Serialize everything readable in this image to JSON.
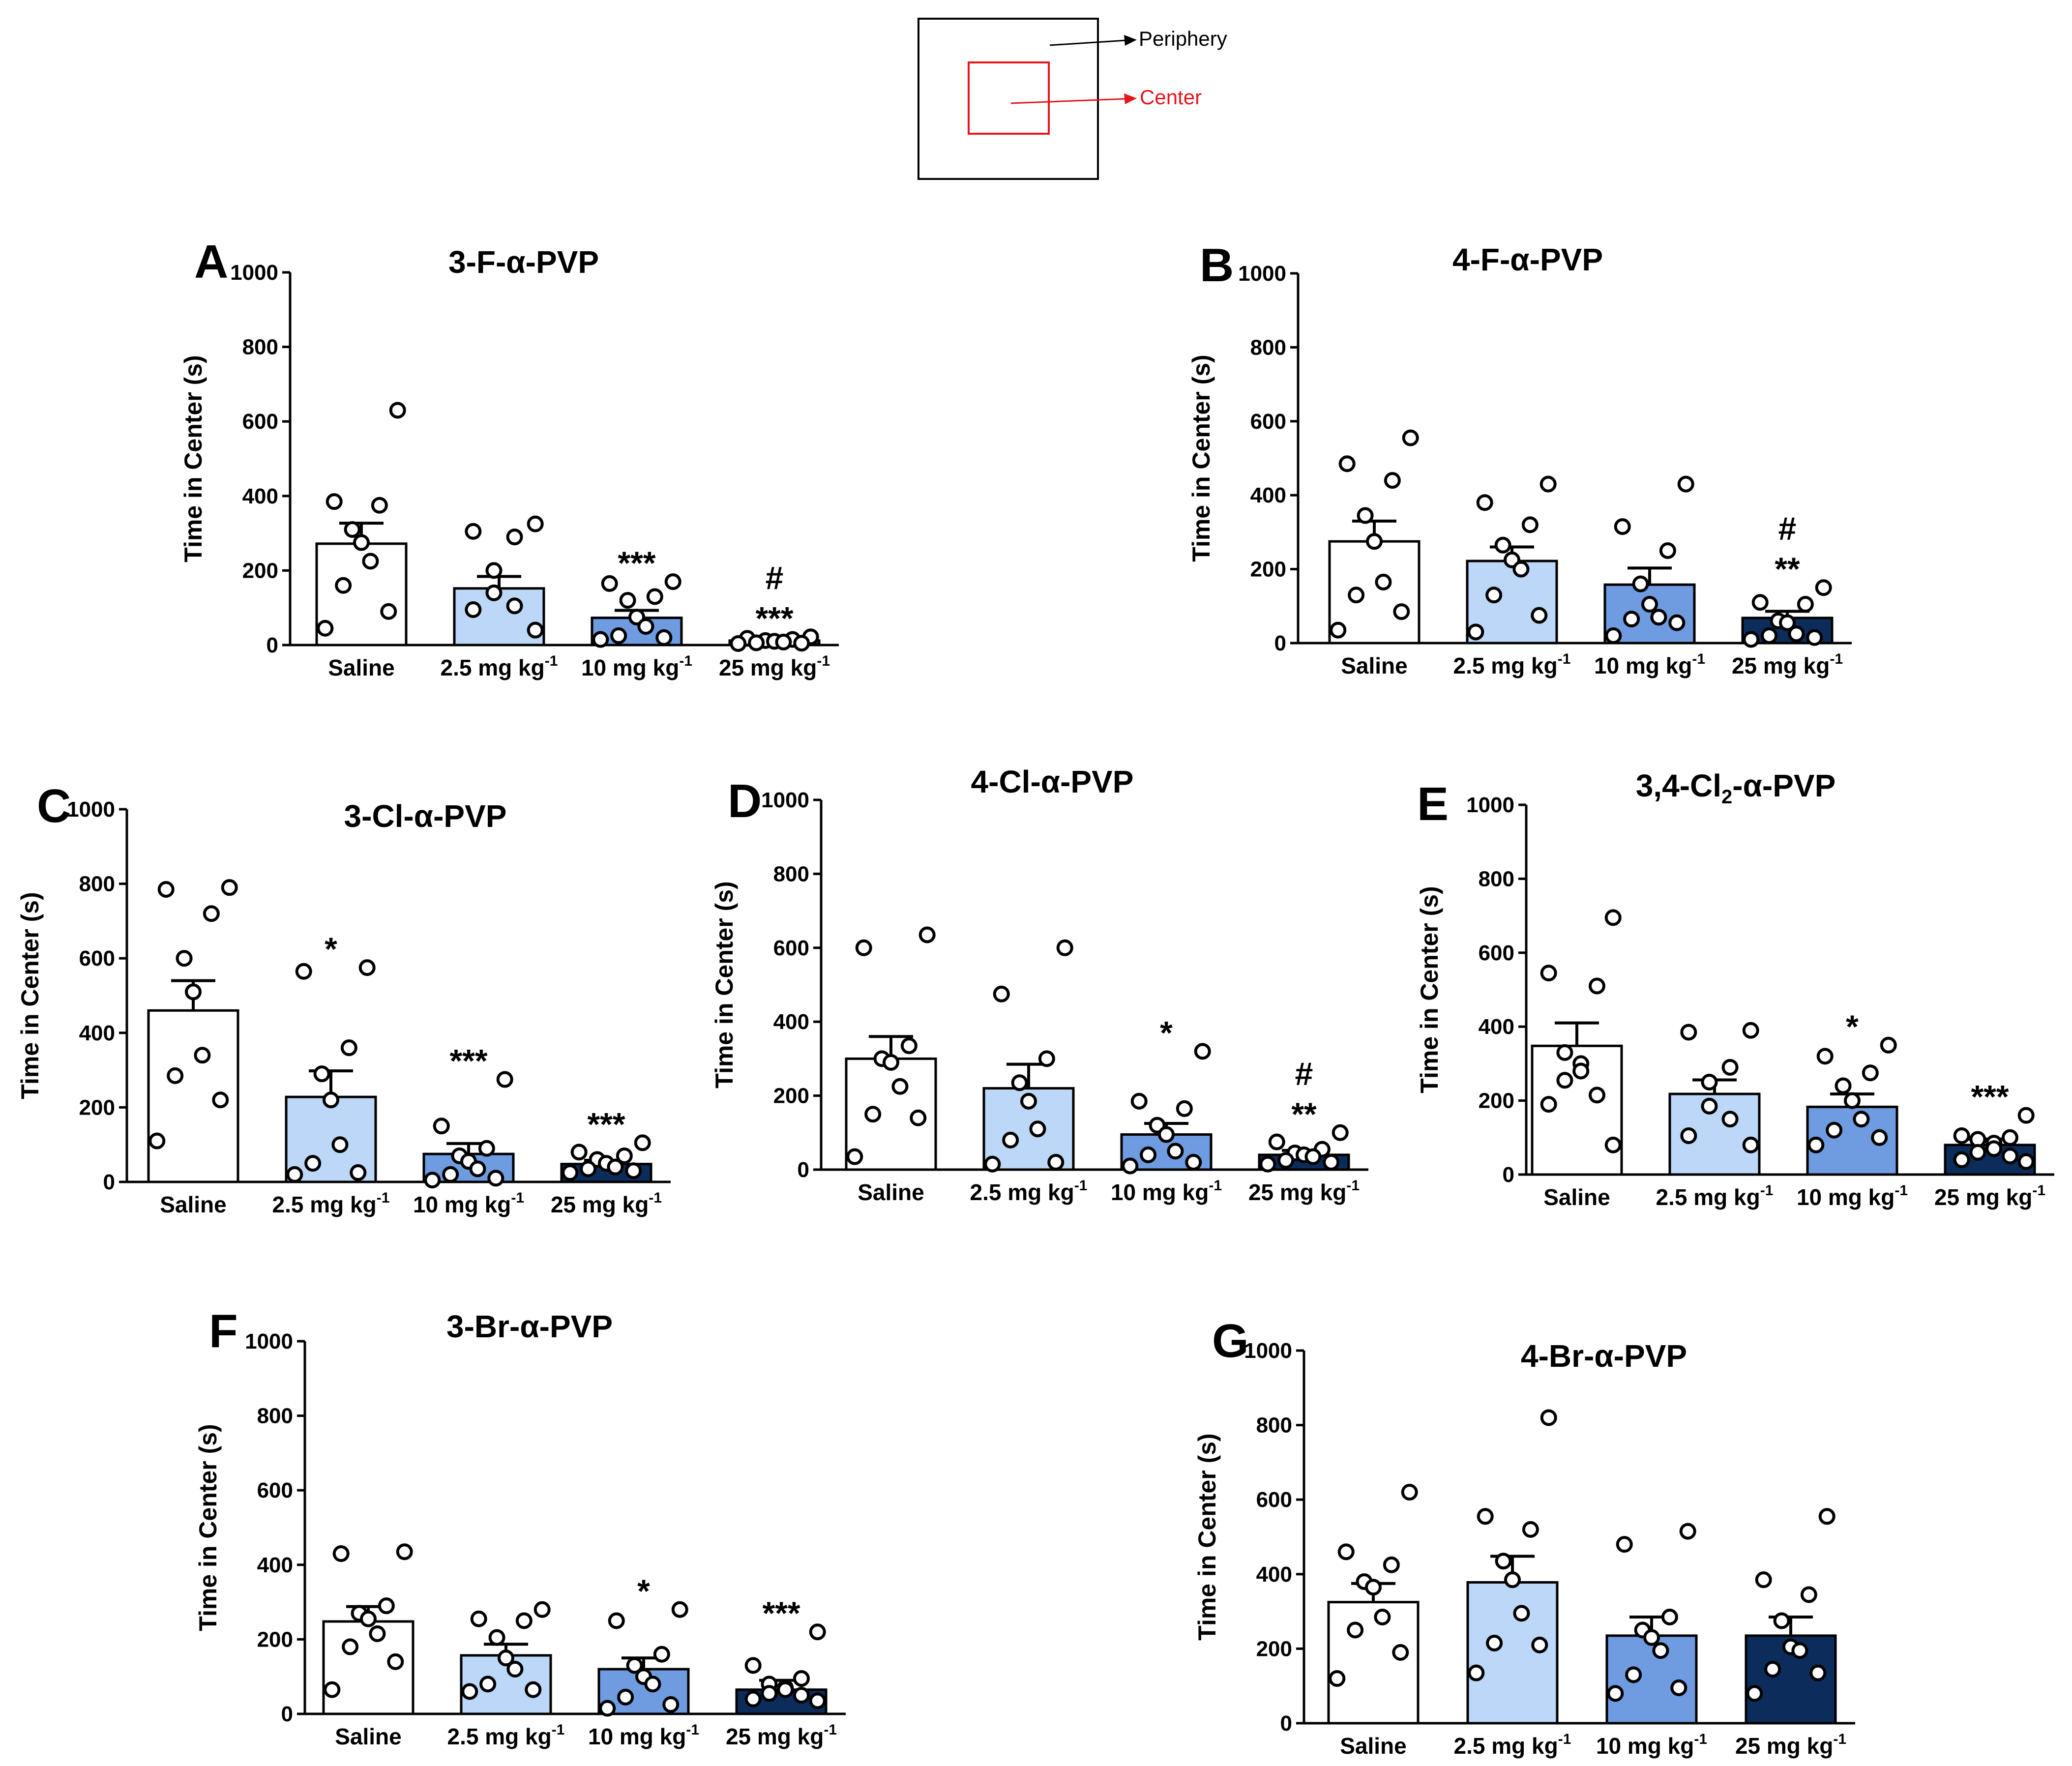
{
  "arena": {
    "periphery_label": "Periphery",
    "center_label": "Center",
    "periphery_color": "#000000",
    "center_color": "#e8141b"
  },
  "bar_colors": [
    "#ffffff",
    "#bcd7f7",
    "#6f9be0",
    "#0c2d5c"
  ],
  "chart_data": [
    {
      "type": "bar",
      "panel": "A",
      "title": "3-F-α-PVP",
      "ylabel": "Time in Center (s)",
      "ylim": [
        0,
        1000
      ],
      "yticks": [
        0,
        200,
        400,
        600,
        800,
        1000
      ],
      "categories": [
        "Saline",
        "2.5 mg kg",
        "10 mg kg",
        "25 mg kg"
      ],
      "unit_superscript": "-1",
      "values": [
        272,
        152,
        73,
        12
      ],
      "sem": [
        55,
        32,
        20,
        3
      ],
      "points": [
        [
          630,
          385,
          375,
          310,
          275,
          225,
          160,
          90,
          45
        ],
        [
          325,
          305,
          290,
          200,
          140,
          105,
          95,
          40
        ],
        [
          170,
          165,
          130,
          120,
          75,
          50,
          25,
          20,
          15
        ],
        [
          22,
          18,
          15,
          12,
          10,
          8,
          6,
          5,
          4
        ]
      ],
      "significance": [
        [
          "",
          ""
        ],
        [
          "",
          ""
        ],
        [
          "***",
          ""
        ],
        [
          "***",
          "#"
        ]
      ]
    },
    {
      "type": "bar",
      "panel": "B",
      "title": "4-F-α-PVP",
      "ylabel": "Time in Center (s)",
      "ylim": [
        0,
        1000
      ],
      "yticks": [
        0,
        200,
        400,
        600,
        800,
        1000
      ],
      "categories": [
        "Saline",
        "2.5 mg kg",
        "10 mg kg",
        "25 mg kg"
      ],
      "unit_superscript": "-1",
      "values": [
        275,
        222,
        158,
        68
      ],
      "sem": [
        55,
        38,
        45,
        18
      ],
      "points": [
        [
          555,
          485,
          440,
          345,
          275,
          165,
          130,
          85,
          35
        ],
        [
          430,
          380,
          320,
          265,
          225,
          200,
          130,
          75,
          30
        ],
        [
          430,
          315,
          250,
          160,
          105,
          70,
          65,
          55,
          20
        ],
        [
          150,
          110,
          105,
          60,
          55,
          25,
          20,
          15,
          10
        ]
      ],
      "significance": [
        [
          "",
          ""
        ],
        [
          "",
          ""
        ],
        [
          "",
          ""
        ],
        [
          "**",
          "#"
        ]
      ]
    },
    {
      "type": "bar",
      "panel": "C",
      "title": "3-Cl-α-PVP",
      "ylabel": "Time in Center (s)",
      "ylim": [
        0,
        1000
      ],
      "yticks": [
        0,
        200,
        400,
        600,
        800,
        1000
      ],
      "categories": [
        "Saline",
        "2.5 mg kg",
        "10 mg kg",
        "25 mg kg"
      ],
      "unit_superscript": "-1",
      "values": [
        460,
        228,
        75,
        48
      ],
      "sem": [
        80,
        70,
        28,
        10
      ],
      "points": [
        [
          790,
          785,
          720,
          600,
          510,
          340,
          285,
          220,
          110
        ],
        [
          575,
          565,
          360,
          290,
          220,
          100,
          50,
          25,
          20
        ],
        [
          275,
          150,
          90,
          70,
          55,
          35,
          20,
          10,
          5
        ],
        [
          105,
          80,
          70,
          60,
          50,
          40,
          35,
          30,
          25
        ]
      ],
      "significance": [
        [
          "",
          ""
        ],
        [
          "*",
          ""
        ],
        [
          "***",
          ""
        ],
        [
          "***",
          ""
        ]
      ]
    },
    {
      "type": "bar",
      "panel": "D",
      "title": "4-Cl-α-PVP",
      "ylabel": "Time in Center (s)",
      "ylim": [
        0,
        1000
      ],
      "yticks": [
        0,
        200,
        400,
        600,
        800,
        1000
      ],
      "categories": [
        "Saline",
        "2.5 mg kg",
        "10 mg kg",
        "25 mg kg"
      ],
      "unit_superscript": "-1",
      "values": [
        300,
        220,
        95,
        40
      ],
      "sem": [
        60,
        65,
        30,
        12
      ],
      "points": [
        [
          635,
          600,
          335,
          300,
          290,
          225,
          150,
          140,
          35
        ],
        [
          600,
          475,
          300,
          235,
          185,
          110,
          80,
          20,
          15
        ],
        [
          320,
          185,
          165,
          120,
          95,
          50,
          40,
          20,
          10
        ],
        [
          100,
          75,
          55,
          45,
          40,
          35,
          25,
          20,
          15
        ]
      ],
      "significance": [
        [
          "",
          ""
        ],
        [
          "",
          ""
        ],
        [
          "*",
          ""
        ],
        [
          "**",
          "#"
        ]
      ]
    },
    {
      "type": "bar",
      "panel": "E",
      "title": "3,4-Cl₂-α-PVP",
      "ylabel": "Time in Center (s)",
      "ylim": [
        0,
        1000
      ],
      "yticks": [
        0,
        200,
        400,
        600,
        800,
        1000
      ],
      "categories": [
        "Saline",
        "2.5 mg kg",
        "10 mg kg",
        "25 mg kg"
      ],
      "unit_superscript": "-1",
      "values": [
        348,
        218,
        183,
        80
      ],
      "sem": [
        62,
        38,
        35,
        16
      ],
      "points": [
        [
          695,
          545,
          510,
          330,
          300,
          280,
          255,
          215,
          190,
          80
        ],
        [
          390,
          385,
          290,
          250,
          185,
          150,
          105,
          80
        ],
        [
          350,
          320,
          275,
          240,
          200,
          150,
          120,
          100,
          80
        ],
        [
          160,
          105,
          100,
          95,
          85,
          70,
          60,
          50,
          40,
          35
        ]
      ],
      "significance": [
        [
          "",
          ""
        ],
        [
          "",
          ""
        ],
        [
          "*",
          ""
        ],
        [
          "***",
          ""
        ]
      ]
    },
    {
      "type": "bar",
      "panel": "F",
      "title": "3-Br-α-PVP",
      "ylabel": "Time in Center (s)",
      "ylim": [
        0,
        1000
      ],
      "yticks": [
        0,
        200,
        400,
        600,
        800,
        1000
      ],
      "categories": [
        "Saline",
        "2.5 mg kg",
        "10 mg kg",
        "25 mg kg"
      ],
      "unit_superscript": "-1",
      "values": [
        248,
        157,
        120,
        65
      ],
      "sem": [
        40,
        30,
        30,
        25
      ],
      "points": [
        [
          435,
          430,
          290,
          270,
          255,
          215,
          180,
          140,
          65
        ],
        [
          280,
          255,
          250,
          205,
          150,
          120,
          80,
          65,
          60
        ],
        [
          280,
          250,
          160,
          130,
          100,
          80,
          45,
          25,
          15
        ],
        [
          220,
          130,
          95,
          80,
          70,
          65,
          55,
          50,
          40,
          35
        ]
      ],
      "significance": [
        [
          "",
          ""
        ],
        [
          "",
          ""
        ],
        [
          "*",
          ""
        ],
        [
          "***",
          ""
        ]
      ]
    },
    {
      "type": "bar",
      "panel": "G",
      "title": "4-Br-α-PVP",
      "ylabel": "Time in Center (s)",
      "ylim": [
        0,
        1000
      ],
      "yticks": [
        0,
        200,
        400,
        600,
        800,
        1000
      ],
      "categories": [
        "Saline",
        "2.5 mg kg",
        "10 mg kg",
        "25 mg kg"
      ],
      "unit_superscript": "-1",
      "values": [
        325,
        378,
        235,
        235
      ],
      "sem": [
        50,
        70,
        50,
        50
      ],
      "points": [
        [
          620,
          460,
          425,
          380,
          365,
          285,
          250,
          190,
          120
        ],
        [
          820,
          555,
          520,
          435,
          385,
          295,
          215,
          210,
          135
        ],
        [
          515,
          480,
          285,
          250,
          230,
          195,
          130,
          95,
          80
        ],
        [
          555,
          385,
          345,
          275,
          205,
          195,
          145,
          135,
          80
        ]
      ],
      "significance": [
        [
          "",
          ""
        ],
        [
          "",
          ""
        ],
        [
          "",
          ""
        ],
        [
          "",
          ""
        ]
      ]
    }
  ]
}
